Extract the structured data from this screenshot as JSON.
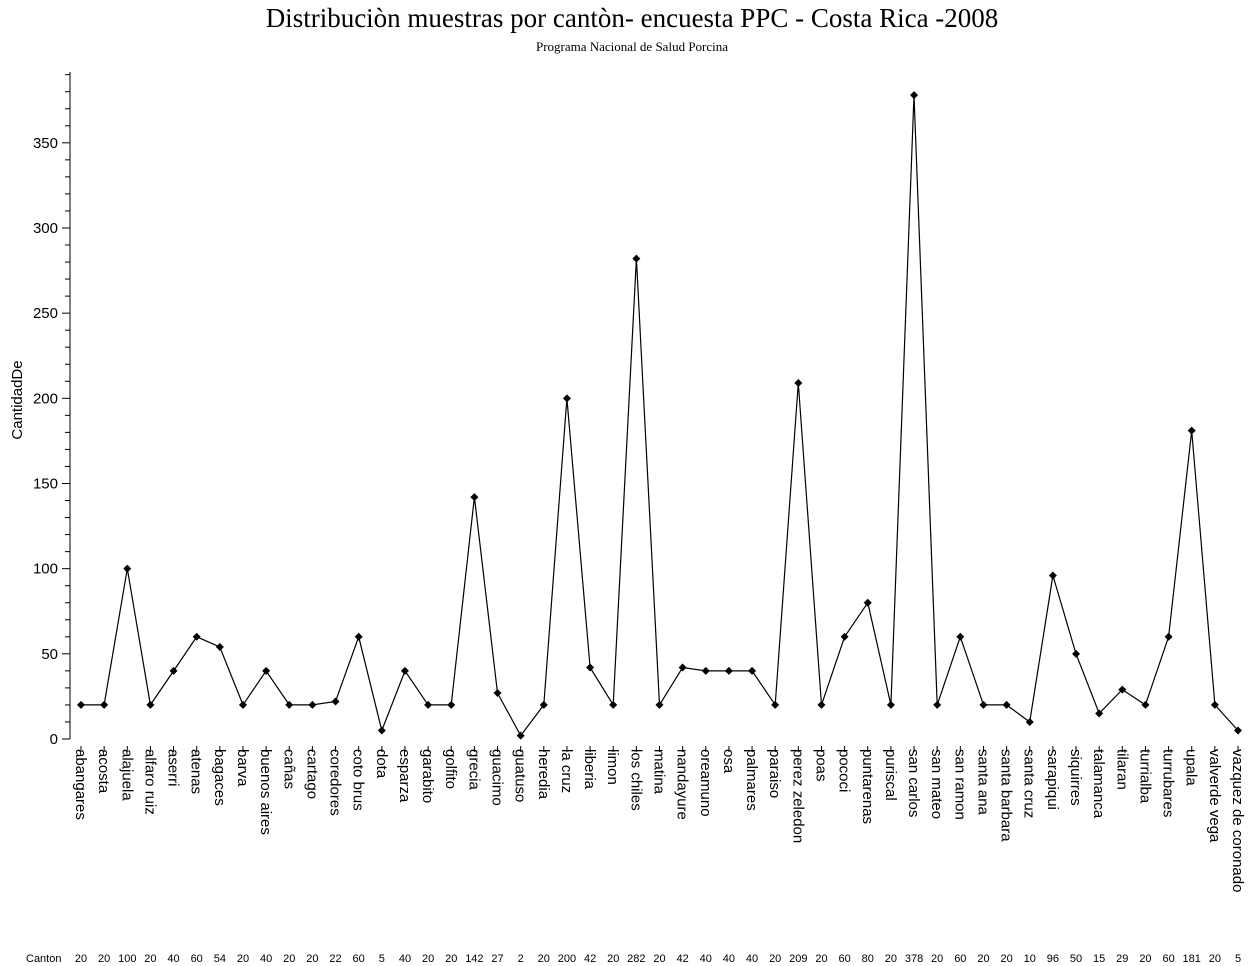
{
  "chart_data": {
    "type": "line",
    "title": "Distribuciòn muestras por cantòn- encuesta PPC - Costa Rica  -2008",
    "subtitle": "Programa Nacional de Salud Porcina",
    "xlabel": "",
    "ylabel": "CantidadDe",
    "ylim": [
      0,
      390
    ],
    "yticks": [
      0,
      50,
      100,
      150,
      200,
      250,
      300,
      350
    ],
    "grid": false,
    "count_row_label": "Canton",
    "categories": [
      "abangares",
      "acosta",
      "alajuela",
      "alfaro ruiz",
      "aserri",
      "atenas",
      "bagaces",
      "barva",
      "buenos aires",
      "cañas",
      "cartago",
      "coredores",
      "coto brus",
      "dota",
      "esparza",
      "garabito",
      "golfito",
      "grecia",
      "guacimo",
      "guatuso",
      "heredia",
      "la cruz",
      "liberia",
      "limon",
      "los chiles",
      "matina",
      "nandayure",
      "oreamuno",
      "osa",
      "palmares",
      "paraiso",
      "perez zeledon",
      "poas",
      "pococi",
      "puntarenas",
      "puriscal",
      "san carlos",
      "san mateo",
      "san ramon",
      "santa ana",
      "santa barbara",
      "santa cruz",
      "sarapiqui",
      "siquirres",
      "talamanca",
      "tilaran",
      "turrialba",
      "turrubares",
      "upala",
      "valverde vega",
      "vazquez de coronado"
    ],
    "series": [
      {
        "values": [
          20,
          20,
          100,
          20,
          40,
          60,
          54,
          20,
          40,
          20,
          20,
          22,
          60,
          5,
          40,
          20,
          20,
          142,
          27,
          2,
          20,
          200,
          42,
          20,
          282,
          20,
          42,
          40,
          40,
          40,
          20,
          209,
          20,
          60,
          80,
          20,
          378,
          20,
          60,
          20,
          20,
          10,
          96,
          50,
          15,
          29,
          20,
          60,
          181,
          20,
          5
        ],
        "marker": "diamond"
      }
    ]
  }
}
